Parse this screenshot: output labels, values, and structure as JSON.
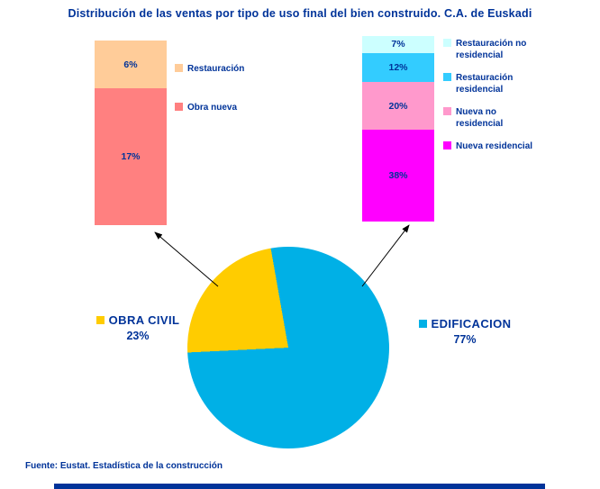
{
  "title": "Distribución de las ventas por tipo de uso final del bien construido. C.A. de Euskadi",
  "source_note": "Fuente: Eustat. Estadística de la construcción",
  "colors": {
    "text_navy": "#003399",
    "background": "#FFFFFF",
    "bottom_bar": "#003399",
    "arrow": "#000000"
  },
  "chart_data": [
    {
      "type": "pie",
      "title": "Distribución de las ventas por tipo de uso final del bien construido. C.A. de Euskadi",
      "legend_position": "sides",
      "slices": [
        {
          "label": "OBRA CIVIL",
          "value": 23,
          "display": "23%",
          "color": "#FFCC00"
        },
        {
          "label": "EDIFICACION",
          "value": 77,
          "display": "77%",
          "color": "#00B0E6"
        }
      ]
    },
    {
      "type": "bar",
      "stacked": true,
      "group": "OBRA CIVIL",
      "total": 23,
      "segments": [
        {
          "label": "Restauración",
          "value": 6,
          "display": "6%",
          "color": "#FFCC99"
        },
        {
          "label": "Obra nueva",
          "value": 17,
          "display": "17%",
          "color": "#FF8080"
        }
      ]
    },
    {
      "type": "bar",
      "stacked": true,
      "group": "EDIFICACION",
      "total": 77,
      "segments": [
        {
          "label": "Restauración no residencial",
          "value": 7,
          "display": "7%",
          "color": "#CCFFFF"
        },
        {
          "label": "Restauración residencial",
          "value": 12,
          "display": "12%",
          "color": "#33CCFF"
        },
        {
          "label": "Nueva no residencial",
          "value": 20,
          "display": "20%",
          "color": "#FF99CC"
        },
        {
          "label": "Nueva residencial",
          "value": 38,
          "display": "38%",
          "color": "#FF00FF"
        }
      ]
    }
  ]
}
